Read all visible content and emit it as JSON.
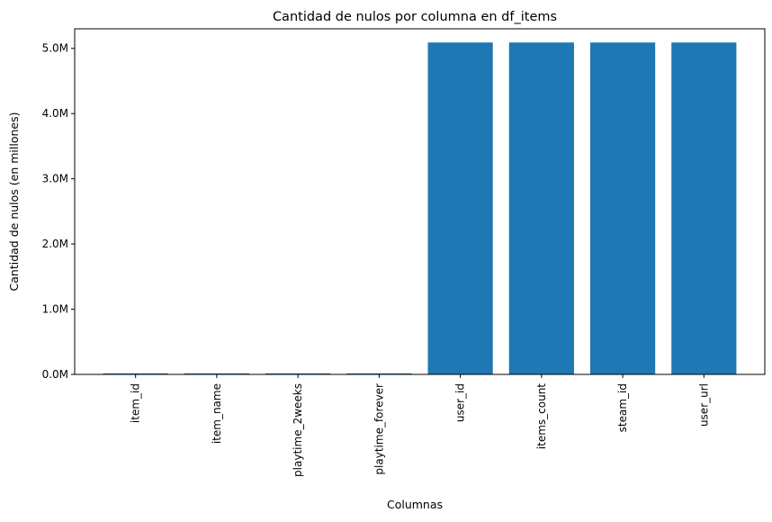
{
  "chart_data": {
    "type": "bar",
    "title": "Cantidad de nulos por columna en df_items",
    "xlabel": "Columnas",
    "ylabel": "Cantidad de nulos (en millones)",
    "categories": [
      "item_id",
      "item_name",
      "playtime_2weeks",
      "playtime_forever",
      "user_id",
      "items_count",
      "steam_id",
      "user_url"
    ],
    "values": [
      0.016,
      0.016,
      0.016,
      0.016,
      5.09,
      5.09,
      5.09,
      5.09
    ],
    "ylim": [
      0,
      5.3
    ],
    "yticks": [
      0,
      1,
      2,
      3,
      4,
      5
    ],
    "ytick_labels": [
      "0.0M",
      "1.0M",
      "2.0M",
      "3.0M",
      "4.0M",
      "5.0M"
    ],
    "bar_color": "#1f77b4",
    "grid": false,
    "legend": "none"
  }
}
